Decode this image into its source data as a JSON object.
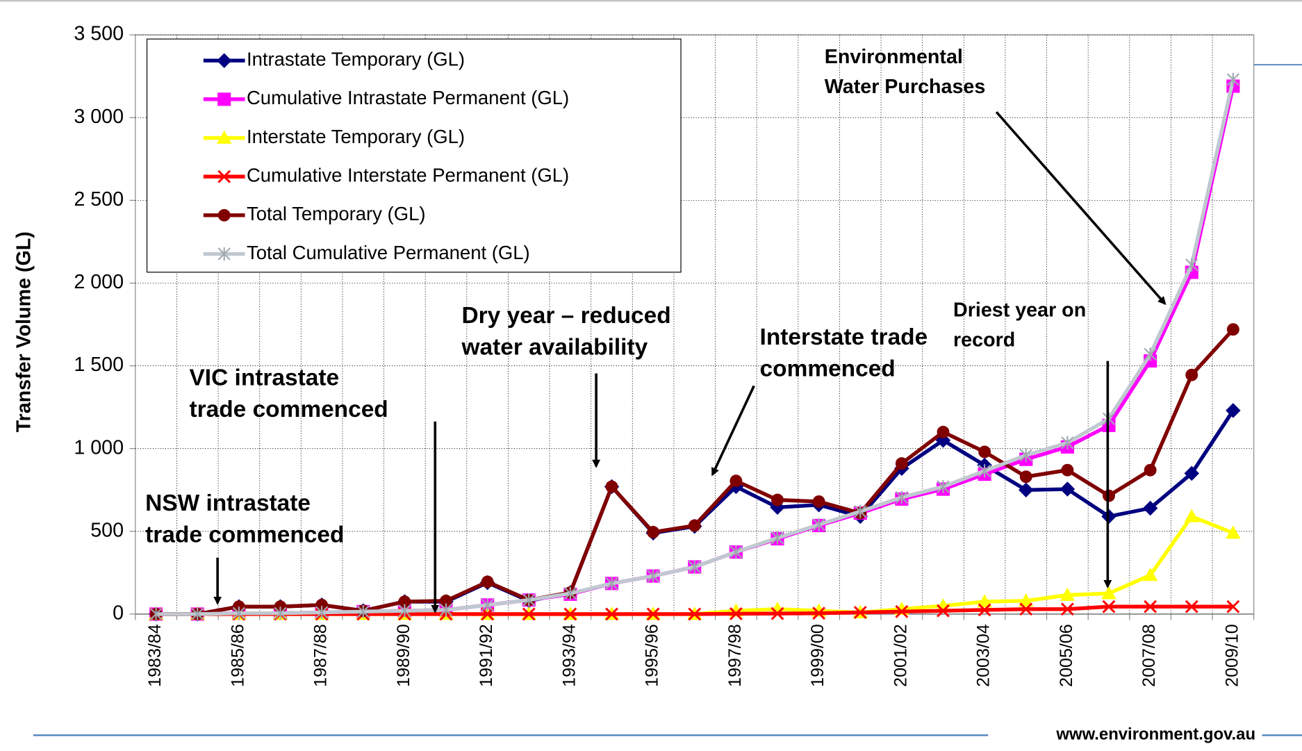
{
  "chart_data": {
    "type": "line",
    "y_label": "Transfer Volume (GL)",
    "categories": [
      "1983/84",
      null,
      "1985/86",
      null,
      "1987/88",
      null,
      "1989/90",
      null,
      "1991/92",
      null,
      "1993/94",
      null,
      "1995/96",
      null,
      "1997/98",
      null,
      "1999/00",
      null,
      "2001/02",
      null,
      "2003/04",
      null,
      "2005/06",
      null,
      "2007/08",
      null,
      "2009/10"
    ],
    "ylim": [
      0,
      3500
    ],
    "yticks": [
      0,
      500,
      {
        "value": 1000,
        "label": "1 000"
      },
      {
        "value": 1500,
        "label": "1 500"
      },
      {
        "value": 2000,
        "label": "2 000"
      },
      {
        "value": 2500,
        "label": "2 500"
      },
      {
        "value": 3000,
        "label": "3 000"
      },
      {
        "value": 3500,
        "label": "3 500"
      }
    ],
    "grid": true,
    "legend": "top-left",
    "series": [
      {
        "name": "Intrastate Temporary (GL)",
        "color": "#000080",
        "marker": "diamond",
        "values": [
          0,
          0,
          45,
          45,
          55,
          20,
          75,
          75,
          190,
          80,
          130,
          770,
          490,
          530,
          770,
          645,
          660,
          590,
          880,
          1050,
          900,
          750,
          755,
          590,
          640,
          850,
          1230
        ]
      },
      {
        "name": "Cumulative Intrastate Permanent (GL)",
        "color": "#ff00ff",
        "marker": "square",
        "values": [
          0,
          0,
          5,
          5,
          10,
          15,
          20,
          25,
          55,
          85,
          120,
          185,
          230,
          285,
          375,
          455,
          535,
          610,
          695,
          755,
          845,
          935,
          1010,
          1140,
          1530,
          2065,
          3190
        ]
      },
      {
        "name": "Interstate Temporary (GL)",
        "color": "#ffff00",
        "marker": "triangle",
        "values": [
          0,
          0,
          0,
          0,
          0,
          0,
          0,
          0,
          0,
          0,
          0,
          0,
          0,
          0,
          20,
          30,
          20,
          10,
          30,
          50,
          75,
          80,
          115,
          125,
          235,
          590,
          490
        ]
      },
      {
        "name": "Cumulative Interstate Permanent (GL)",
        "color": "#ff0000",
        "marker": "x",
        "values": [
          0,
          0,
          0,
          0,
          0,
          0,
          0,
          0,
          0,
          0,
          0,
          0,
          0,
          0,
          2,
          3,
          5,
          10,
          15,
          20,
          25,
          30,
          30,
          45,
          45,
          45,
          45
        ]
      },
      {
        "name": "Total Temporary (GL)",
        "color": "#800000",
        "marker": "circle",
        "values": [
          0,
          0,
          45,
          45,
          55,
          20,
          75,
          80,
          195,
          85,
          130,
          770,
          495,
          535,
          805,
          690,
          680,
          610,
          910,
          1100,
          980,
          830,
          870,
          715,
          870,
          1445,
          1720
        ]
      },
      {
        "name": "Total Cumulative Permanent (GL)",
        "color": "#c0c8d0",
        "marker": "star",
        "values": [
          0,
          0,
          5,
          5,
          10,
          15,
          20,
          25,
          55,
          85,
          125,
          185,
          230,
          285,
          375,
          460,
          540,
          620,
          705,
          770,
          865,
          960,
          1035,
          1180,
          1570,
          2110,
          3230
        ]
      }
    ],
    "annotations": [
      {
        "lines": [
          "NSW intrastate",
          "trade commenced"
        ]
      },
      {
        "lines": [
          "VIC intrastate",
          "trade commenced"
        ]
      },
      {
        "lines": [
          "Dry year – reduced",
          "water availability"
        ]
      },
      {
        "lines": [
          "Interstate trade",
          "commenced"
        ]
      },
      {
        "lines": [
          "Driest year on",
          "record"
        ]
      },
      {
        "lines": [
          "Environmental",
          "Water Purchases"
        ]
      }
    ],
    "footer": "www.environment.gov.au"
  }
}
